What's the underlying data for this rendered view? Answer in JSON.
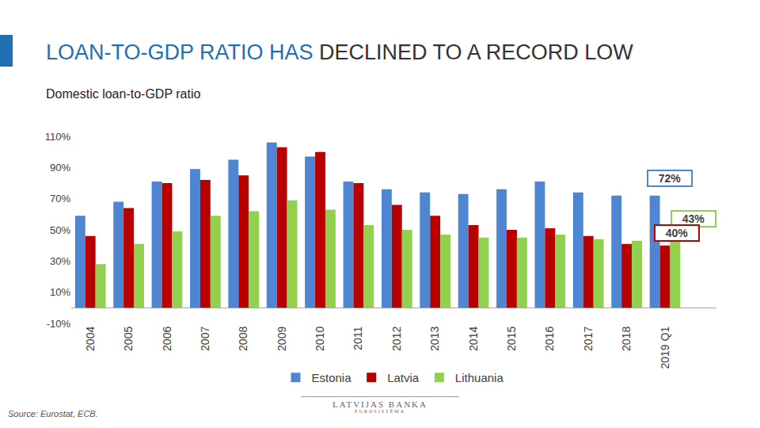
{
  "chart_data": {
    "type": "bar",
    "title": "LOAN-TO-GDP RATIO HAS DECLINED TO A RECORD LOW",
    "subtitle": "Domestic loan-to-GDP ratio",
    "source": "Source: Eurostat, ECB.",
    "logo": [
      "LATVIJAS BANKA",
      "EUROSISTĒMA"
    ],
    "categories": [
      "2004",
      "2005",
      "2006",
      "2007",
      "2008",
      "2009",
      "2010",
      "2011",
      "2012",
      "2013",
      "2014",
      "2015",
      "2016",
      "2017",
      "2018",
      "2019 Q1"
    ],
    "series": [
      {
        "name": "Estonia",
        "color": "#4f86d3",
        "values": [
          59,
          68,
          81,
          89,
          95,
          106,
          97,
          81,
          76,
          74,
          73,
          76,
          81,
          74,
          72,
          72
        ]
      },
      {
        "name": "Latvia",
        "color": "#b80000",
        "values": [
          46,
          64,
          80,
          82,
          85,
          103,
          100,
          80,
          66,
          59,
          53,
          50,
          51,
          46,
          41,
          40
        ]
      },
      {
        "name": "Lithuania",
        "color": "#92d050",
        "values": [
          28,
          41,
          49,
          59,
          62,
          69,
          63,
          53,
          50,
          47,
          45,
          45,
          47,
          44,
          43,
          43
        ]
      }
    ],
    "annotations": [
      {
        "text": "72%",
        "series": "Estonia"
      },
      {
        "text": "43%",
        "series": "Lithuania"
      },
      {
        "text": "40%",
        "series": "Latvia"
      }
    ],
    "ylim": [
      -10,
      110
    ],
    "yticks": [
      {
        "value": -10,
        "label": "-10%"
      },
      {
        "value": 10,
        "label": "10%"
      },
      {
        "value": 30,
        "label": "30%"
      },
      {
        "value": 50,
        "label": "50%"
      },
      {
        "value": 70,
        "label": "70%"
      },
      {
        "value": 90,
        "label": "90%"
      },
      {
        "value": 110,
        "label": "110%"
      }
    ],
    "grid": false,
    "legend": "bottom",
    "data_labels": false
  }
}
